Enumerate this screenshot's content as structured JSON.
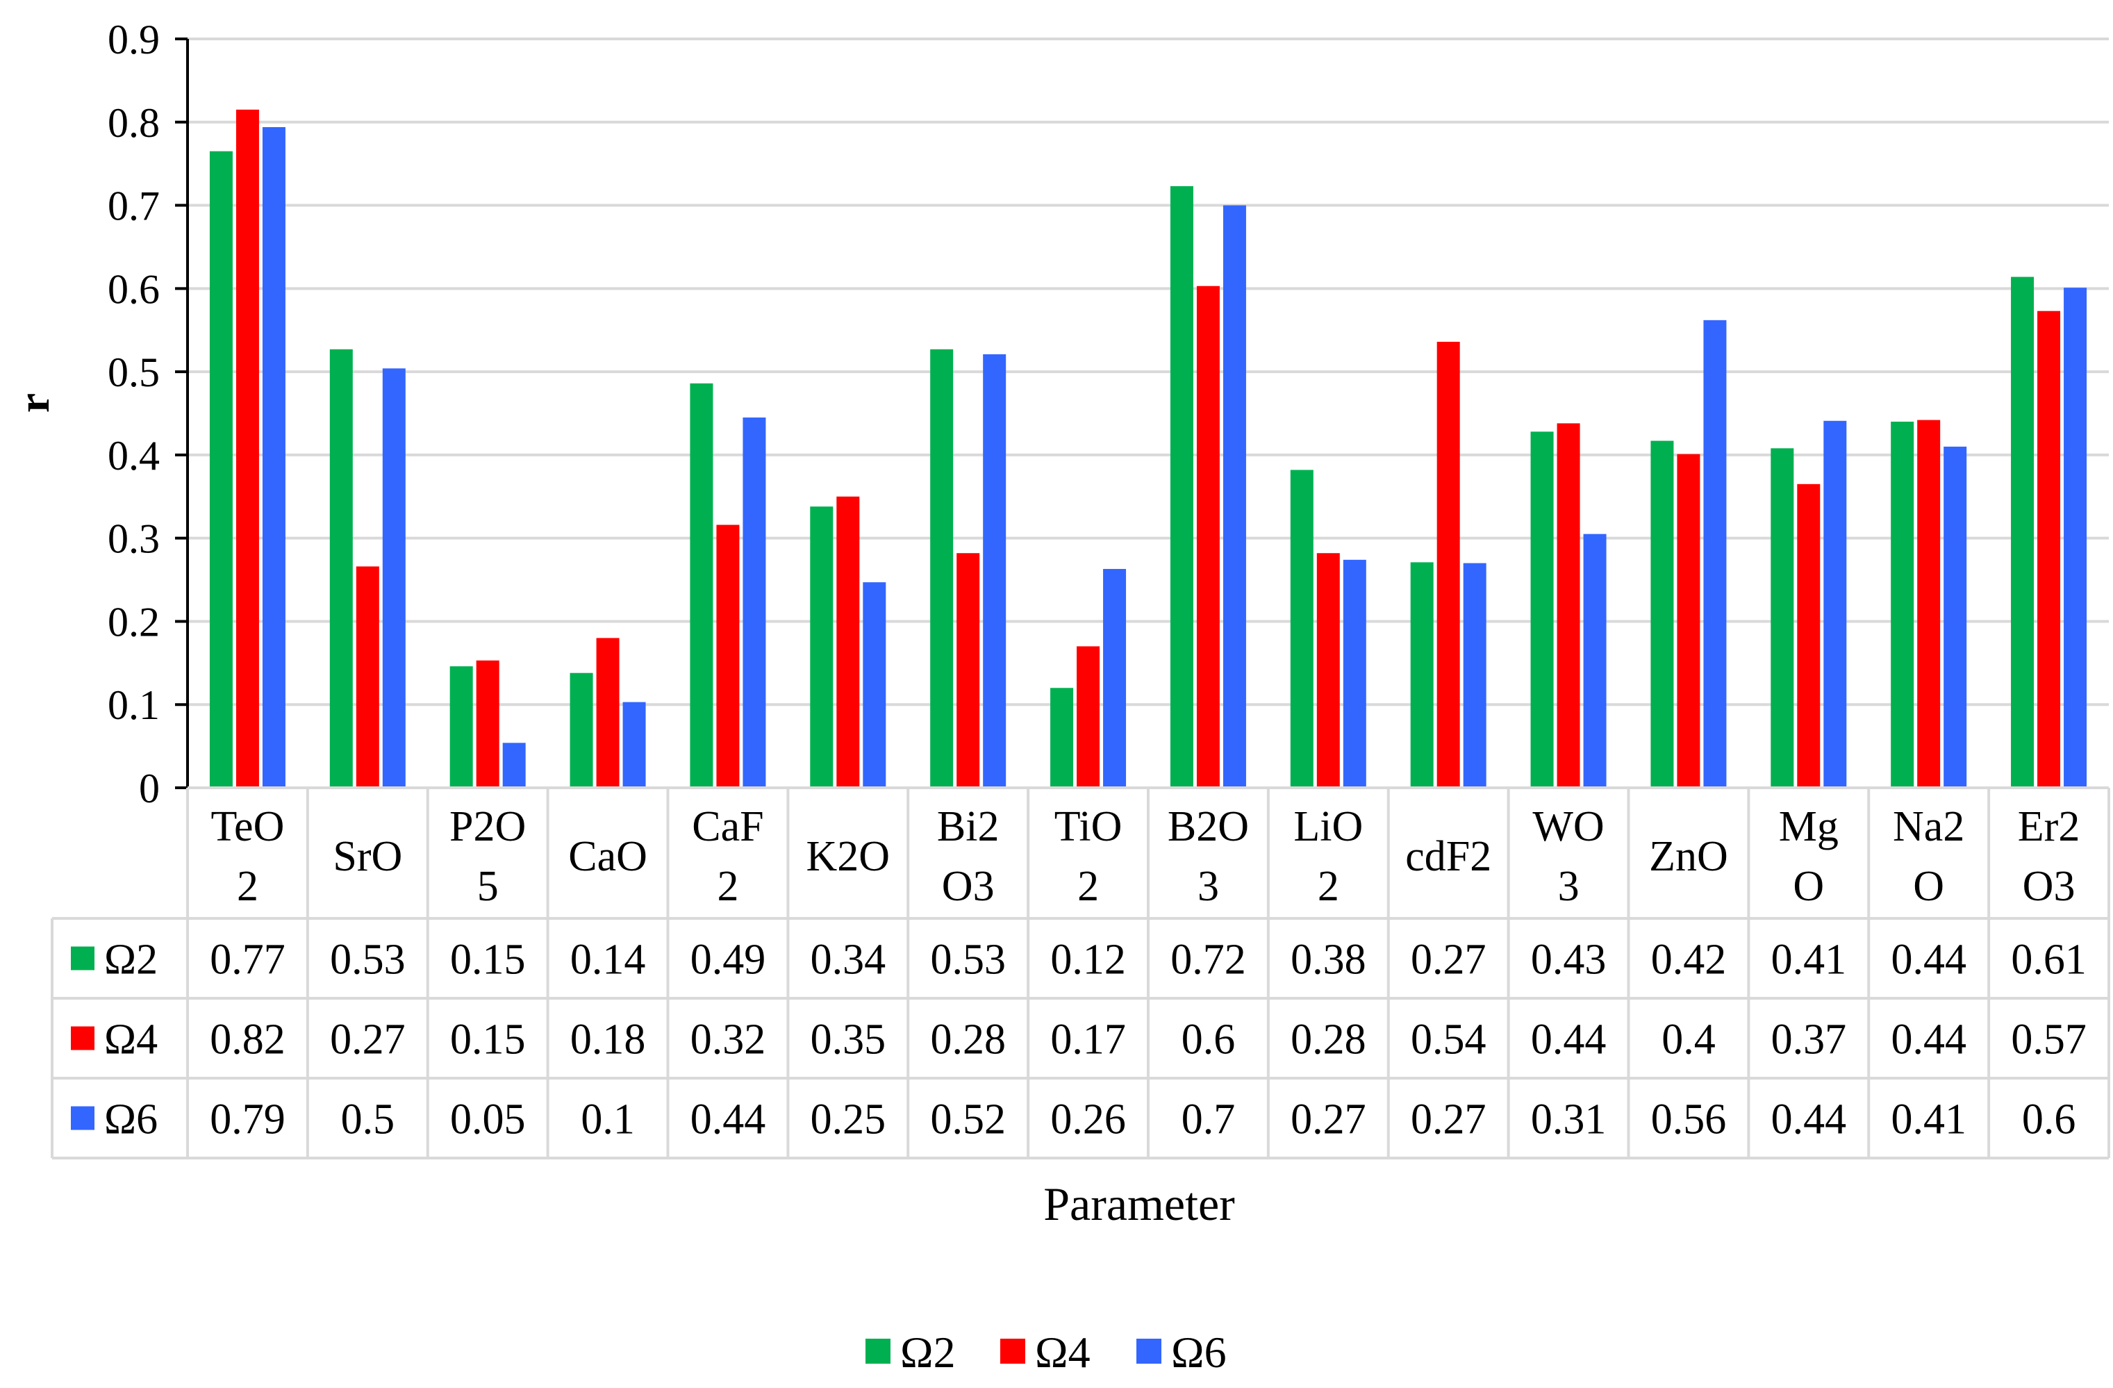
{
  "chart_data": {
    "type": "bar",
    "title": "",
    "xlabel": "Parameter",
    "ylabel": "r",
    "ylim": [
      0,
      0.9
    ],
    "yticks": [
      "0",
      "0.1",
      "0.2",
      "0.3",
      "0.4",
      "0.5",
      "0.6",
      "0.7",
      "0.8",
      "0.9"
    ],
    "grid": true,
    "legend_position": "bottom",
    "categories": [
      [
        "TeO",
        "2"
      ],
      [
        "SrO"
      ],
      [
        "P2O",
        "5"
      ],
      [
        "CaO"
      ],
      [
        "CaF",
        "2"
      ],
      [
        "K2O"
      ],
      [
        "Bi2",
        "O3"
      ],
      [
        "TiO",
        "2"
      ],
      [
        "B2O",
        "3"
      ],
      [
        "LiO",
        "2"
      ],
      [
        "cdF2"
      ],
      [
        "WO",
        "3"
      ],
      [
        "ZnO"
      ],
      [
        "Mg",
        "O"
      ],
      [
        "Na2",
        "O"
      ],
      [
        "Er2",
        "O3"
      ]
    ],
    "series": [
      {
        "name": "Ω2",
        "color": "#00b050",
        "values": [
          0.765,
          0.527,
          0.146,
          0.138,
          0.486,
          0.338,
          0.527,
          0.12,
          0.723,
          0.382,
          0.271,
          0.428,
          0.417,
          0.408,
          0.44,
          0.614
        ],
        "labels": [
          "0.77",
          "0.53",
          "0.15",
          "0.14",
          "0.49",
          "0.34",
          "0.53",
          "0.12",
          "0.72",
          "0.38",
          "0.27",
          "0.43",
          "0.42",
          "0.41",
          "0.44",
          "0.61"
        ]
      },
      {
        "name": "Ω4",
        "color": "#ff0000",
        "values": [
          0.815,
          0.266,
          0.153,
          0.18,
          0.316,
          0.35,
          0.282,
          0.17,
          0.603,
          0.282,
          0.536,
          0.438,
          0.401,
          0.365,
          0.442,
          0.573
        ],
        "labels": [
          "0.82",
          "0.27",
          "0.15",
          "0.18",
          "0.32",
          "0.35",
          "0.28",
          "0.17",
          "0.6",
          "0.28",
          "0.54",
          "0.44",
          "0.4",
          "0.37",
          "0.44",
          "0.57"
        ]
      },
      {
        "name": "Ω6",
        "color": "#3366ff",
        "values": [
          0.794,
          0.504,
          0.054,
          0.103,
          0.445,
          0.247,
          0.521,
          0.263,
          0.7,
          0.274,
          0.27,
          0.305,
          0.562,
          0.441,
          0.41,
          0.601
        ],
        "labels": [
          "0.79",
          "0.5",
          "0.05",
          "0.1",
          "0.44",
          "0.25",
          "0.52",
          "0.26",
          "0.7",
          "0.27",
          "0.27",
          "0.31",
          "0.56",
          "0.44",
          "0.41",
          "0.6"
        ]
      }
    ]
  }
}
